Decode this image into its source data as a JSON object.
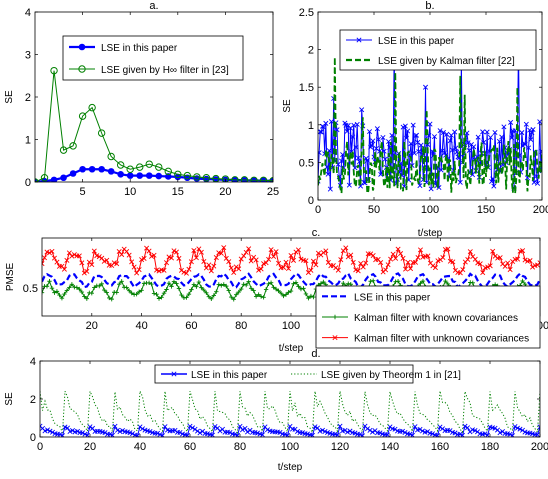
{
  "chart_data": [
    {
      "id": "a",
      "type": "line",
      "title": "a.",
      "xlabel": "",
      "ylabel": "SE",
      "xlim": [
        0,
        25
      ],
      "ylim": [
        0,
        4
      ],
      "xticks": [
        5,
        10,
        15,
        20,
        25
      ],
      "yticks": [
        0,
        1,
        2,
        3,
        4
      ],
      "legend": "top-left",
      "series": [
        {
          "name": "LSE in this paper",
          "color": "#0000ff",
          "marker": "dot",
          "x": [
            0,
            1,
            2,
            3,
            4,
            5,
            6,
            7,
            8,
            9,
            10,
            11,
            12,
            13,
            14,
            15,
            16,
            17,
            18,
            19,
            20,
            21,
            22,
            23,
            24,
            25
          ],
          "y": [
            0.0,
            0.02,
            0.05,
            0.1,
            0.2,
            0.3,
            0.3,
            0.3,
            0.25,
            0.18,
            0.15,
            0.15,
            0.15,
            0.14,
            0.13,
            0.12,
            0.1,
            0.08,
            0.07,
            0.06,
            0.05,
            0.05,
            0.04,
            0.04,
            0.03,
            0.03
          ]
        },
        {
          "name": "LSE given by H∞ filter in [23]",
          "color": "#008000",
          "marker": "circle",
          "x": [
            0,
            1,
            2,
            3,
            4,
            5,
            6,
            7,
            8,
            9,
            10,
            11,
            12,
            13,
            14,
            15,
            16,
            17,
            18,
            19,
            20,
            21,
            22,
            23,
            24,
            25
          ],
          "y": [
            0.0,
            0.1,
            2.62,
            0.75,
            0.85,
            1.55,
            1.75,
            1.15,
            0.6,
            0.4,
            0.3,
            0.35,
            0.42,
            0.35,
            0.25,
            0.18,
            0.15,
            0.12,
            0.1,
            0.08,
            0.07,
            0.05,
            0.05,
            0.04,
            0.04,
            0.03
          ]
        }
      ]
    },
    {
      "id": "b",
      "type": "line",
      "title": "b.",
      "xlabel": "t/step",
      "ylabel": "SE",
      "xlim": [
        0,
        200
      ],
      "ylim": [
        0,
        2.5
      ],
      "xticks": [
        0,
        50,
        100,
        150,
        200
      ],
      "yticks": [
        0,
        0.5,
        1,
        1.5,
        2,
        2.5
      ],
      "legend": "top-left",
      "generator": "noisy",
      "n_points": 201,
      "series": [
        {
          "name": "LSE in this paper",
          "color": "#0000ff",
          "dash": "none",
          "marker": "x",
          "mean": 0.55,
          "amp": 0.45,
          "spikes": [
            [
              14,
              1.35
            ],
            [
              39,
              1.2
            ],
            [
              68,
              2.0
            ],
            [
              96,
              1.5
            ],
            [
              128,
              1.85
            ],
            [
              179,
              2.05
            ]
          ]
        },
        {
          "name": "LSE given by Kalman filter [22]",
          "color": "#008000",
          "dash": "dashed",
          "marker": "none",
          "mean": 0.4,
          "amp": 0.35,
          "spikes": [
            [
              15,
              1.9
            ],
            [
              40,
              1.1
            ],
            [
              69,
              1.7
            ],
            [
              97,
              1.2
            ],
            [
              127,
              1.65
            ],
            [
              131,
              1.4
            ],
            [
              178,
              1.5
            ]
          ]
        }
      ]
    },
    {
      "id": "c",
      "type": "line",
      "title": "c.",
      "xlabel": "t/step",
      "ylabel": "PMSE",
      "xlim": [
        0,
        200
      ],
      "ylim": [
        0.25,
        0.95
      ],
      "xticks": [
        20,
        40,
        60,
        80,
        100,
        120,
        140,
        160,
        180,
        200
      ],
      "yticks": [
        0.5
      ],
      "legend": "bottom-right",
      "generator": "periodic",
      "n_points": 201,
      "series": [
        {
          "name": "LSE in this paper",
          "color": "#0000ff",
          "dash": "dashed",
          "marker": "none",
          "mean": 0.57,
          "amp": 0.05,
          "noise": 0.015
        },
        {
          "name": "Kalman filter with known covariances",
          "color": "#008000",
          "dash": "none",
          "marker": "plus",
          "mean": 0.48,
          "amp": 0.06,
          "noise": 0.03
        },
        {
          "name": "Kalman filter with unknown covariances",
          "color": "#ff0000",
          "dash": "none",
          "marker": "x",
          "mean": 0.75,
          "amp": 0.07,
          "noise": 0.05
        }
      ]
    },
    {
      "id": "d",
      "type": "line",
      "title": "d.",
      "xlabel": "t/step",
      "ylabel": "SE",
      "xlim": [
        0,
        200
      ],
      "ylim": [
        0,
        4
      ],
      "xticks": [
        0,
        20,
        40,
        60,
        80,
        100,
        120,
        140,
        160,
        180,
        200
      ],
      "yticks": [
        0,
        2,
        4
      ],
      "legend": "top-center",
      "generator": "sawtooth",
      "n_points": 201,
      "series": [
        {
          "name": "LSE in this paper",
          "color": "#0000ff",
          "dash": "none",
          "marker": "x",
          "high": 0.55,
          "low": 0.05
        },
        {
          "name": "LSE given by Theorem 1 in [21]",
          "color": "#008000",
          "dash": "dotted",
          "marker": "none",
          "high": 2.4,
          "low": 0.1
        }
      ]
    }
  ]
}
